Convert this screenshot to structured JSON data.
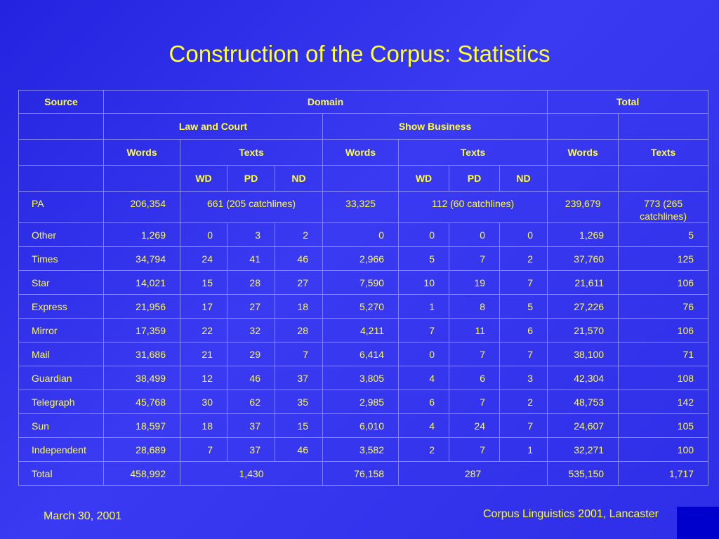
{
  "title": "Construction of the Corpus: Statistics",
  "headers": {
    "source": "Source",
    "domain": "Domain",
    "total": "Total",
    "law_and_court": "Law and Court",
    "show_business": "Show Business",
    "words": "Words",
    "texts": "Texts",
    "wd": "WD",
    "pd": "PD",
    "nd": "ND"
  },
  "pa_row": {
    "source": "PA",
    "law_words": "206,354",
    "law_texts": "661 (205 catchlines)",
    "show_words": "33,325",
    "show_texts": "112 (60 catchlines)",
    "total_words": "239,679",
    "total_texts": "773 (265 catchlines)"
  },
  "rows": [
    {
      "source": "Other",
      "law_words": "1,269",
      "law_wd": "0",
      "law_pd": "3",
      "law_nd": "2",
      "show_words": "0",
      "show_wd": "0",
      "show_pd": "0",
      "show_nd": "0",
      "total_words": "1,269",
      "total_texts": "5"
    },
    {
      "source": "Times",
      "law_words": "34,794",
      "law_wd": "24",
      "law_pd": "41",
      "law_nd": "46",
      "show_words": "2,966",
      "show_wd": "5",
      "show_pd": "7",
      "show_nd": "2",
      "total_words": "37,760",
      "total_texts": "125"
    },
    {
      "source": "Star",
      "law_words": "14,021",
      "law_wd": "15",
      "law_pd": "28",
      "law_nd": "27",
      "show_words": "7,590",
      "show_wd": "10",
      "show_pd": "19",
      "show_nd": "7",
      "total_words": "21,611",
      "total_texts": "106"
    },
    {
      "source": "Express",
      "law_words": "21,956",
      "law_wd": "17",
      "law_pd": "27",
      "law_nd": "18",
      "show_words": "5,270",
      "show_wd": "1",
      "show_pd": "8",
      "show_nd": "5",
      "total_words": "27,226",
      "total_texts": "76"
    },
    {
      "source": "Mirror",
      "law_words": "17,359",
      "law_wd": "22",
      "law_pd": "32",
      "law_nd": "28",
      "show_words": "4,211",
      "show_wd": "7",
      "show_pd": "11",
      "show_nd": "6",
      "total_words": "21,570",
      "total_texts": "106"
    },
    {
      "source": "Mail",
      "law_words": "31,686",
      "law_wd": "21",
      "law_pd": "29",
      "law_nd": "7",
      "show_words": "6,414",
      "show_wd": "0",
      "show_pd": "7",
      "show_nd": "7",
      "total_words": "38,100",
      "total_texts": "71"
    },
    {
      "source": "Guardian",
      "law_words": "38,499",
      "law_wd": "12",
      "law_pd": "46",
      "law_nd": "37",
      "show_words": "3,805",
      "show_wd": "4",
      "show_pd": "6",
      "show_nd": "3",
      "total_words": "42,304",
      "total_texts": "108"
    },
    {
      "source": "Telegraph",
      "law_words": "45,768",
      "law_wd": "30",
      "law_pd": "62",
      "law_nd": "35",
      "show_words": "2,985",
      "show_wd": "6",
      "show_pd": "7",
      "show_nd": "2",
      "total_words": "48,753",
      "total_texts": "142"
    },
    {
      "source": "Sun",
      "law_words": "18,597",
      "law_wd": "18",
      "law_pd": "37",
      "law_nd": "15",
      "show_words": "6,010",
      "show_wd": "4",
      "show_pd": "24",
      "show_nd": "7",
      "total_words": "24,607",
      "total_texts": "105"
    },
    {
      "source": "Independent",
      "law_words": "28,689",
      "law_wd": "7",
      "law_pd": "37",
      "law_nd": "46",
      "show_words": "3,582",
      "show_wd": "2",
      "show_pd": "7",
      "show_nd": "1",
      "total_words": "32,271",
      "total_texts": "100"
    }
  ],
  "total_row": {
    "source": "Total",
    "law_words": "458,992",
    "law_texts": "1,430",
    "show_words": "76,158",
    "show_texts": "287",
    "total_words": "535,150",
    "total_texts": "1,717"
  },
  "footer": {
    "date": "March 30, 2001",
    "event": "Corpus Linguistics 2001, Lancaster"
  },
  "colors": {
    "background": "#3333ee",
    "text": "#ffff33",
    "grid": "#8c8cff",
    "corner_box": "#0000cc"
  }
}
